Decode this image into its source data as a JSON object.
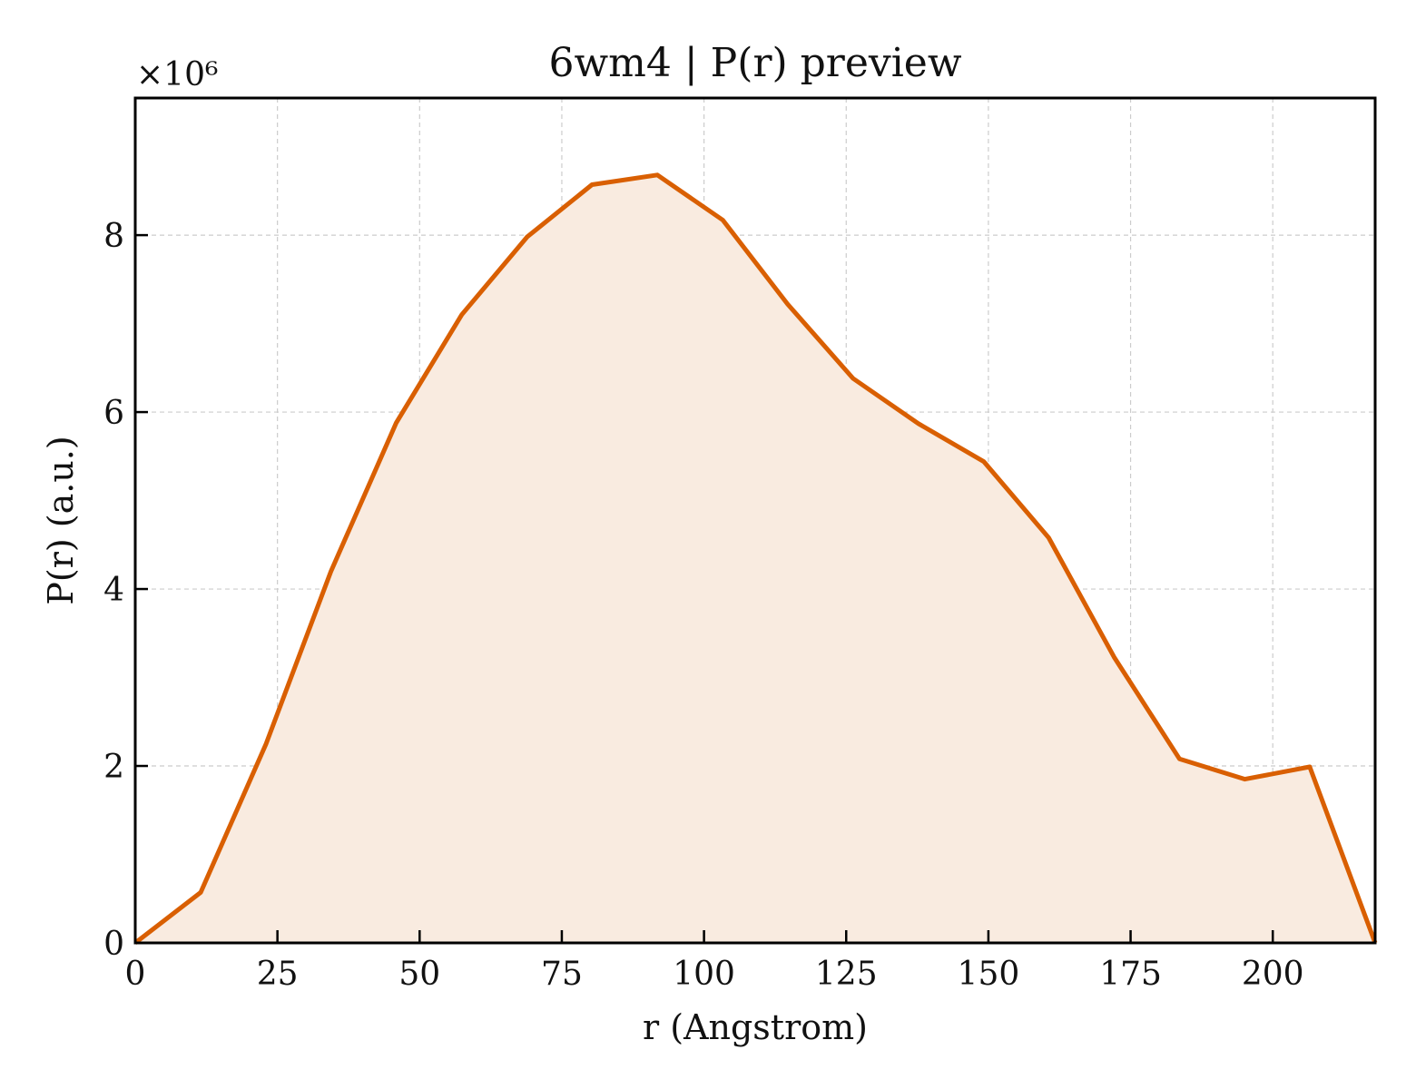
{
  "chart_data": {
    "type": "area",
    "title": "6wm4 | P(r) preview",
    "xlabel": "r (Angstrom)",
    "ylabel": "P(r) (a.u.)",
    "y_offset_label": "×10⁶",
    "y_multiplier": 1000000,
    "xlim": [
      0,
      218
    ],
    "ylim": [
      0,
      9.55
    ],
    "x_ticks": [
      0,
      25,
      50,
      75,
      100,
      125,
      150,
      175,
      200
    ],
    "y_ticks": [
      0,
      2,
      4,
      6,
      8
    ],
    "grid": true,
    "line_color": "#d95f02",
    "fill_color": "#f9ebe0",
    "series": [
      {
        "x": [
          0,
          11.5,
          23,
          34.4,
          45.9,
          57.4,
          68.9,
          80.3,
          91.8,
          103.3,
          114.7,
          126.2,
          137.7,
          149.2,
          160.6,
          172.1,
          183.6,
          195.1,
          206.5,
          218
        ],
        "y": [
          0,
          0.57,
          2.25,
          4.2,
          5.88,
          7.1,
          7.98,
          8.57,
          8.68,
          8.17,
          7.22,
          6.38,
          5.87,
          5.44,
          4.58,
          3.23,
          2.08,
          1.85,
          1.99,
          0
        ]
      }
    ]
  }
}
